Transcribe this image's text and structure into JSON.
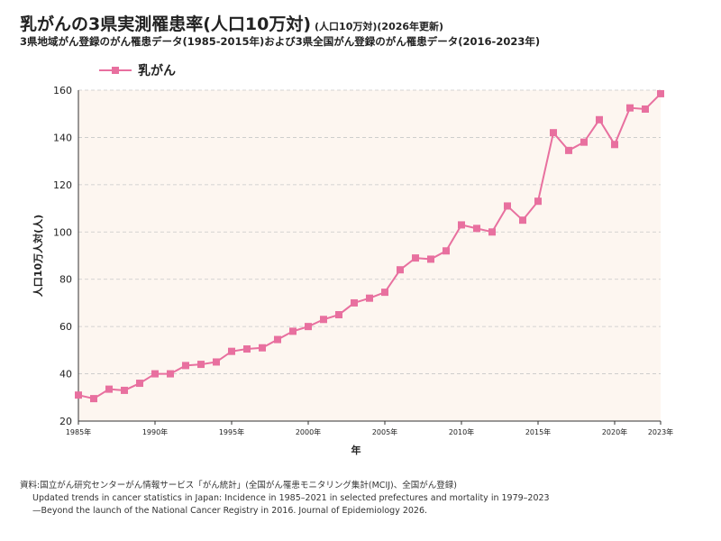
{
  "header": {
    "title": "乳がんの3県実測罹患率(人口10万対)",
    "title_note": "(人口10万対)(2026年更新)",
    "subtitle": "3県地域がん登録のがん罹患データ(1985-2015年)および3県全国がん登録のがん罹患データ(2016-2023年)"
  },
  "source": {
    "line1": "資料:国立がん研究センターがん情報サービス「がん統計」(全国がん罹患モニタリング集計(MCIJ)、全国がん登録)",
    "line2": "Updated trends in cancer statistics in Japan: Incidence in 1985–2021 in selected prefectures and mortality in 1979–2023",
    "line3": "—Beyond the launch of the National Cancer Registry in 2016. Journal of Epidemiology 2026."
  },
  "colors": {
    "series": "#e8709f",
    "plot_bg": "#fdf6f0",
    "grid": "#c8c8c8"
  },
  "chart_data": {
    "type": "line",
    "xlabel": "年",
    "ylabel": "人口10万人対(人)",
    "ylim": [
      20,
      160
    ],
    "yticks": [
      20,
      40,
      60,
      80,
      100,
      120,
      140,
      160
    ],
    "xlim": [
      1985,
      2023
    ],
    "xticks": [
      {
        "value": 1985,
        "label": "1985年"
      },
      {
        "value": 1990,
        "label": "1990年"
      },
      {
        "value": 1995,
        "label": "1995年"
      },
      {
        "value": 2000,
        "label": "2000年"
      },
      {
        "value": 2005,
        "label": "2005年"
      },
      {
        "value": 2010,
        "label": "2010年"
      },
      {
        "value": 2015,
        "label": "2015年"
      },
      {
        "value": 2020,
        "label": "2020年"
      },
      {
        "value": 2023,
        "label": "2023年"
      }
    ],
    "grid": "horizontal dashed",
    "legend_position": "top-left",
    "series": [
      {
        "name": "乳がん",
        "marker": "square",
        "x": [
          1985,
          1986,
          1987,
          1988,
          1989,
          1990,
          1991,
          1992,
          1993,
          1994,
          1995,
          1996,
          1997,
          1998,
          1999,
          2000,
          2001,
          2002,
          2003,
          2004,
          2005,
          2006,
          2007,
          2008,
          2009,
          2010,
          2011,
          2012,
          2013,
          2014,
          2015,
          2016,
          2017,
          2018,
          2019,
          2020,
          2021,
          2022,
          2023
        ],
        "values": [
          31,
          29.5,
          33.5,
          33,
          36,
          40,
          40,
          43.5,
          44,
          45,
          49.5,
          50.5,
          51,
          54.5,
          58,
          60,
          63,
          65,
          70,
          72,
          74.5,
          84,
          89,
          88.5,
          92,
          103,
          101.5,
          100,
          111,
          105,
          113,
          142,
          134.5,
          138,
          147.5,
          137,
          152.5,
          152,
          158.5
        ]
      }
    ]
  }
}
